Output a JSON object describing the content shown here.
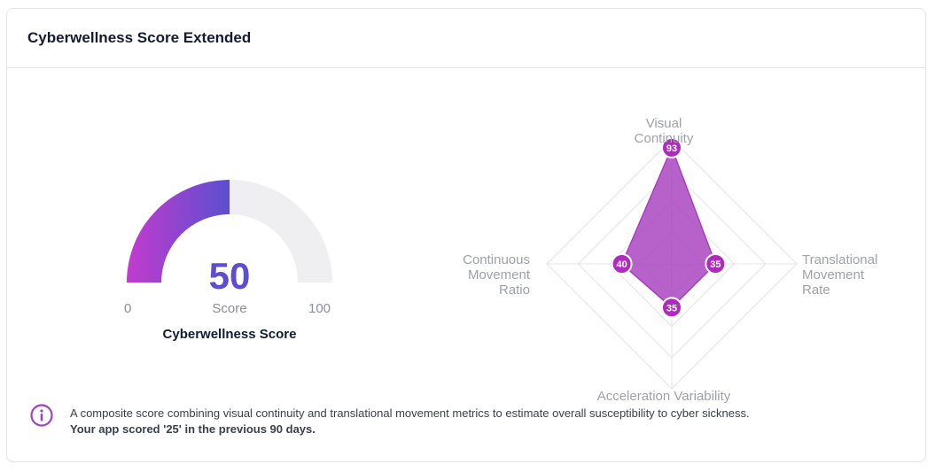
{
  "card": {
    "title": "Cyberwellness Score Extended"
  },
  "gauge": {
    "value": 50,
    "value_text": "50",
    "caption": "Score",
    "min_label": "0",
    "max_label": "100",
    "min": 0,
    "max": 100,
    "title": "Cyberwellness Score",
    "colors": {
      "gradient_start": "#c33bcf",
      "gradient_end": "#5b4fcf",
      "track": "#efeff1"
    }
  },
  "chart_data": {
    "type": "radar",
    "axes": [
      {
        "name": "Visual Continuity",
        "lines": [
          "Visual",
          "Continuity"
        ],
        "value": 93,
        "label": "93"
      },
      {
        "name": "Translational Movement Rate",
        "lines": [
          "Translational",
          "Movement",
          "Rate"
        ],
        "value": 35,
        "label": "35"
      },
      {
        "name": "Acceleration Variability",
        "lines": [
          "Acceleration Variability"
        ],
        "value": 35,
        "label": "35"
      },
      {
        "name": "Continuous Movement Ratio",
        "lines": [
          "Continuous",
          "Movement",
          "Ratio"
        ],
        "value": 40,
        "label": "40"
      }
    ],
    "range": [
      0,
      100
    ],
    "grid_rings": 4,
    "colors": {
      "fill": "#a73fbe",
      "point": "#b12ac0",
      "grid": "#e4e4e8"
    }
  },
  "info": {
    "icon": "info-circle-icon",
    "text": "A composite score combining visual continuity and translational movement metrics to estimate overall susceptibility to cyber sickness.",
    "emphasis": "Your app scored '25' in the previous 90 days.",
    "color": "#9b44c9"
  }
}
